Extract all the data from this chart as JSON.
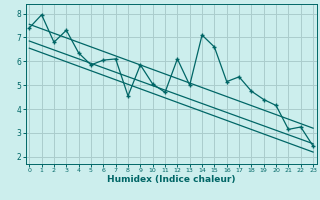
{
  "x_data": [
    0,
    1,
    2,
    3,
    4,
    5,
    6,
    7,
    8,
    9,
    10,
    11,
    12,
    13,
    14,
    15,
    16,
    17,
    18,
    19,
    20,
    21,
    22,
    23
  ],
  "y_main": [
    7.4,
    7.95,
    6.8,
    7.3,
    6.35,
    5.85,
    6.05,
    6.1,
    4.55,
    5.85,
    5.05,
    4.7,
    6.1,
    5.0,
    7.1,
    6.6,
    5.15,
    5.35,
    4.75,
    4.4,
    4.15,
    3.15,
    3.25,
    2.45
  ],
  "trend1_x": [
    0,
    23
  ],
  "trend1_y": [
    7.55,
    3.2
  ],
  "trend2_x": [
    0,
    23
  ],
  "trend2_y": [
    6.85,
    2.55
  ],
  "trend3_x": [
    0,
    23
  ],
  "trend3_y": [
    6.55,
    2.2
  ],
  "color": "#006666",
  "bg_color": "#cceeed",
  "grid_color": "#aacccc",
  "xlabel": "Humidex (Indice chaleur)",
  "xlim": [
    -0.3,
    23.3
  ],
  "ylim": [
    1.7,
    8.4
  ],
  "yticks": [
    2,
    3,
    4,
    5,
    6,
    7,
    8
  ],
  "xticks": [
    0,
    1,
    2,
    3,
    4,
    5,
    6,
    7,
    8,
    9,
    10,
    11,
    12,
    13,
    14,
    15,
    16,
    17,
    18,
    19,
    20,
    21,
    22,
    23
  ]
}
